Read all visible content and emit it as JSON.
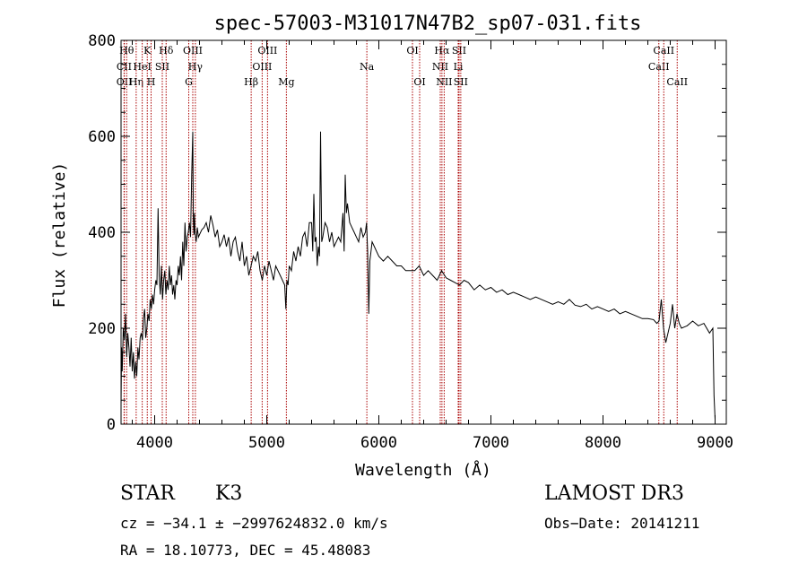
{
  "chart_data": {
    "type": "line",
    "title": "spec-57003-M31017N47B2_sp07-031.fits",
    "xlabel": "Wavelength (Å)",
    "ylabel": "Flux (relative)",
    "xlim": [
      3700,
      9100
    ],
    "ylim": [
      0,
      800
    ],
    "xticks": [
      4000,
      5000,
      6000,
      7000,
      8000,
      9000
    ],
    "yticks": [
      0,
      200,
      400,
      600,
      800
    ],
    "grid": false,
    "series": [
      {
        "name": "flux",
        "x": [
          3700,
          3705,
          3710,
          3720,
          3730,
          3740,
          3750,
          3760,
          3770,
          3780,
          3790,
          3800,
          3810,
          3820,
          3830,
          3840,
          3850,
          3860,
          3870,
          3880,
          3890,
          3900,
          3910,
          3920,
          3930,
          3940,
          3950,
          3960,
          3970,
          3980,
          3990,
          4000,
          4010,
          4020,
          4030,
          4040,
          4050,
          4060,
          4070,
          4080,
          4090,
          4100,
          4110,
          4120,
          4130,
          4140,
          4150,
          4160,
          4170,
          4180,
          4190,
          4200,
          4210,
          4220,
          4230,
          4240,
          4250,
          4260,
          4270,
          4280,
          4290,
          4300,
          4310,
          4320,
          4330,
          4340,
          4345,
          4350,
          4355,
          4360,
          4370,
          4380,
          4390,
          4400,
          4420,
          4440,
          4460,
          4480,
          4500,
          4520,
          4540,
          4560,
          4580,
          4600,
          4620,
          4640,
          4660,
          4680,
          4700,
          4720,
          4740,
          4760,
          4780,
          4800,
          4820,
          4840,
          4860,
          4880,
          4900,
          4920,
          4940,
          4960,
          4980,
          5000,
          5020,
          5040,
          5060,
          5080,
          5100,
          5120,
          5140,
          5160,
          5170,
          5180,
          5190,
          5200,
          5220,
          5240,
          5260,
          5280,
          5300,
          5320,
          5340,
          5360,
          5380,
          5400,
          5410,
          5420,
          5430,
          5440,
          5450,
          5460,
          5470,
          5480,
          5490,
          5500,
          5520,
          5540,
          5560,
          5580,
          5600,
          5620,
          5640,
          5660,
          5680,
          5690,
          5700,
          5710,
          5720,
          5740,
          5760,
          5780,
          5800,
          5820,
          5840,
          5860,
          5880,
          5890,
          5900,
          5910,
          5920,
          5940,
          5960,
          5980,
          6000,
          6040,
          6080,
          6120,
          6160,
          6200,
          6240,
          6280,
          6320,
          6360,
          6400,
          6440,
          6480,
          6520,
          6560,
          6600,
          6640,
          6680,
          6720,
          6760,
          6800,
          6850,
          6900,
          6950,
          7000,
          7050,
          7100,
          7150,
          7200,
          7250,
          7300,
          7350,
          7400,
          7450,
          7500,
          7550,
          7600,
          7650,
          7700,
          7750,
          7800,
          7850,
          7900,
          7950,
          8000,
          8050,
          8100,
          8150,
          8200,
          8250,
          8300,
          8350,
          8400,
          8450,
          8480,
          8500,
          8520,
          8540,
          8560,
          8600,
          8620,
          8640,
          8660,
          8680,
          8700,
          8750,
          8800,
          8850,
          8900,
          8950,
          8980,
          8990,
          9000
        ],
        "y": [
          40,
          160,
          110,
          200,
          175,
          230,
          140,
          190,
          160,
          120,
          180,
          110,
          150,
          95,
          130,
          100,
          160,
          135,
          180,
          190,
          175,
          220,
          240,
          180,
          200,
          230,
          215,
          260,
          240,
          270,
          250,
          280,
          300,
          290,
          450,
          310,
          270,
          330,
          260,
          300,
          320,
          270,
          300,
          280,
          330,
          290,
          310,
          270,
          290,
          260,
          300,
          290,
          330,
          310,
          350,
          300,
          380,
          330,
          420,
          360,
          390,
          400,
          420,
          390,
          520,
          610,
          430,
          395,
          440,
          400,
          380,
          410,
          390,
          395,
          405,
          410,
          420,
          400,
          435,
          415,
          390,
          405,
          370,
          380,
          395,
          370,
          390,
          350,
          380,
          390,
          360,
          340,
          380,
          330,
          350,
          310,
          330,
          350,
          340,
          360,
          320,
          300,
          330,
          310,
          340,
          320,
          300,
          330,
          320,
          310,
          300,
          290,
          240,
          300,
          290,
          330,
          320,
          360,
          340,
          370,
          350,
          390,
          400,
          370,
          420,
          420,
          360,
          480,
          380,
          390,
          330,
          370,
          350,
          610,
          380,
          390,
          420,
          410,
          380,
          400,
          370,
          380,
          390,
          380,
          440,
          360,
          520,
          440,
          460,
          420,
          410,
          400,
          390,
          380,
          410,
          390,
          400,
          420,
          360,
          230,
          340,
          380,
          370,
          360,
          350,
          340,
          350,
          340,
          330,
          330,
          320,
          320,
          320,
          330,
          310,
          320,
          310,
          300,
          320,
          305,
          300,
          295,
          290,
          300,
          295,
          280,
          290,
          280,
          285,
          275,
          280,
          270,
          275,
          270,
          265,
          260,
          265,
          260,
          255,
          250,
          255,
          250,
          260,
          248,
          245,
          250,
          240,
          245,
          240,
          235,
          240,
          230,
          235,
          230,
          225,
          220,
          220,
          218,
          210,
          215,
          260,
          200,
          170,
          210,
          250,
          200,
          230,
          210,
          200,
          205,
          215,
          205,
          210,
          190,
          200,
          60,
          10
        ]
      }
    ],
    "lines": [
      {
        "label": "CII",
        "x": 3727,
        "tier": 1
      },
      {
        "label": "OII",
        "x": 3729,
        "tier": 2
      },
      {
        "label": "Hθ",
        "x": 3750,
        "tier": 0
      },
      {
        "label": "Hη",
        "x": 3835,
        "tier": 2
      },
      {
        "label": "HeI",
        "x": 3889,
        "tier": 1
      },
      {
        "label": "K",
        "x": 3934,
        "tier": 0
      },
      {
        "label": "H",
        "x": 3968,
        "tier": 2
      },
      {
        "label": "SII",
        "x": 4068,
        "tier": 1
      },
      {
        "label": "Hδ",
        "x": 4102,
        "tier": 0
      },
      {
        "label": "G",
        "x": 4304,
        "tier": 2
      },
      {
        "label": "OIII",
        "x": 4340,
        "tier": 0
      },
      {
        "label": "Hγ",
        "x": 4363,
        "tier": 1
      },
      {
        "label": "Hβ",
        "x": 4861,
        "tier": 2
      },
      {
        "label": "OIII",
        "x": 4959,
        "tier": 1
      },
      {
        "label": "OIII",
        "x": 5007,
        "tier": 0
      },
      {
        "label": "Mg",
        "x": 5175,
        "tier": 2
      },
      {
        "label": "Na",
        "x": 5893,
        "tier": 1
      },
      {
        "label": "OI",
        "x": 6300,
        "tier": 0
      },
      {
        "label": "OI",
        "x": 6364,
        "tier": 2
      },
      {
        "label": "NII",
        "x": 6548,
        "tier": 1
      },
      {
        "label": "Hα",
        "x": 6563,
        "tier": 0
      },
      {
        "label": "NII",
        "x": 6583,
        "tier": 2
      },
      {
        "label": "SII",
        "x": 6716,
        "tier": 0
      },
      {
        "label": "Li",
        "x": 6708,
        "tier": 1
      },
      {
        "label": "SII",
        "x": 6731,
        "tier": 2
      },
      {
        "label": "CaII",
        "x": 8498,
        "tier": 1
      },
      {
        "label": "CaII",
        "x": 8542,
        "tier": 0
      },
      {
        "label": "CaII",
        "x": 8662,
        "tier": 2
      }
    ]
  },
  "info": {
    "class": "STAR",
    "subclass": "K3",
    "survey": "LAMOST DR3",
    "cz": "cz = −34.1 ± −2997624832.0 km/s",
    "obsdate": "Obs−Date: 20141211",
    "radec": "RA =  18.10773, DEC =  45.48083"
  },
  "colors": {
    "spectrum": "#000000",
    "line_marker": "#aa0000",
    "axis": "#000000"
  }
}
